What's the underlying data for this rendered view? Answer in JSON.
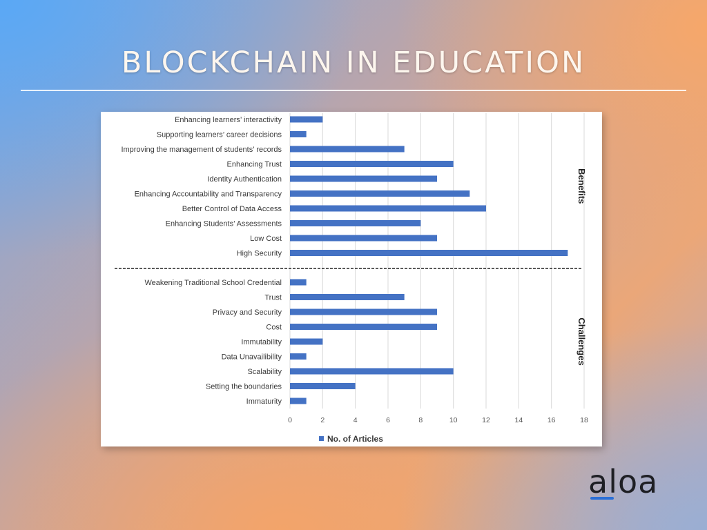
{
  "page": {
    "title": "BLOCKCHAIN IN EDUCATION",
    "logo_text": "aloa",
    "colors": {
      "bar": "#4472C4",
      "logo_accent": "#2b6fd6"
    }
  },
  "chart_data": {
    "type": "bar",
    "orientation": "horizontal",
    "title": "",
    "xlabel": "",
    "ylabel": "",
    "xlim": [
      0,
      18
    ],
    "xticks": [
      0,
      2,
      4,
      6,
      8,
      10,
      12,
      14,
      16,
      18
    ],
    "grid": "vertical",
    "legend": {
      "position": "bottom",
      "entries": [
        "No. of Articles"
      ]
    },
    "series": [
      {
        "name": "No. of Articles",
        "color": "#4472C4"
      }
    ],
    "groups": [
      {
        "label": "Benefits",
        "categories": [
          "Enhancing learners’ interactivity",
          "Supporting learners’ career decisions",
          "Improving the management of students’ records",
          "Enhancing Trust",
          "Identity Authentication",
          "Enhancing Accountability and Transparency",
          "Better Control of Data Access",
          "Enhancing Students’ Assessments",
          "Low Cost",
          "High Security"
        ],
        "values": [
          2,
          1,
          7,
          10,
          9,
          11,
          12,
          8,
          9,
          17
        ]
      },
      {
        "label": "Challenges",
        "categories": [
          "Weakening Traditional School Credential",
          "Trust",
          "Privacy and Security",
          "Cost",
          "Immutability",
          "Data Unavailibility",
          "Scalability",
          "Setting the boundaries",
          "Immaturity"
        ],
        "values": [
          1,
          7,
          9,
          9,
          2,
          1,
          10,
          4,
          1
        ]
      }
    ]
  }
}
